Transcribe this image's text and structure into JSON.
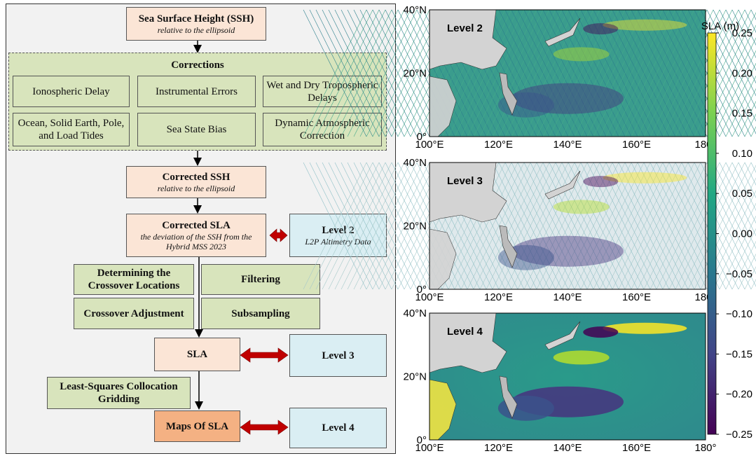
{
  "flowchart": {
    "ssh": {
      "title": "Sea Surface Height (SSH)",
      "subtitle": "relative to the ellipsoid"
    },
    "corrections": {
      "title": "Corrections",
      "items": [
        "Ionospheric Delay",
        "Instrumental Errors",
        "Wet and Dry Tropospheric Delays",
        "Ocean, Solid Earth, Pole, and Load Tides",
        "Sea State Bias",
        "Dynamic Atmospheric Correction"
      ]
    },
    "corrected_ssh": {
      "title": "Corrected SSH",
      "subtitle": "relative to the ellipsoid"
    },
    "corrected_sla": {
      "title": "Corrected SLA",
      "subtitle": "the deviation of the SSH from the Hybrid MSS 2023"
    },
    "level2": {
      "title": "Level 2",
      "subtitle": "L2P Altimetry Data"
    },
    "processing": [
      "Determining the Crossover Locations",
      "Filtering",
      "Crossover Adjustment",
      "Subsampling"
    ],
    "sla": "SLA",
    "level3": "Level 3",
    "gridding": "Least-Squares Collocation Gridding",
    "maps": "Maps Of SLA",
    "level4": "Level 4"
  },
  "maps": {
    "panels": [
      "Level 2",
      "Level 3",
      "Level 4"
    ],
    "lat_labels": [
      "40°N",
      "20°N",
      "0°"
    ],
    "lon_labels": [
      "100°E",
      "120°E",
      "140°E",
      "160°E",
      "180°"
    ]
  },
  "colorbar": {
    "label": "SLA (m)",
    "ticks": [
      "0.25",
      "0.20",
      "0.15",
      "0.10",
      "0.05",
      "0.00",
      "−0.05",
      "−0.10",
      "−0.15",
      "−0.20",
      "−0.25"
    ]
  }
}
